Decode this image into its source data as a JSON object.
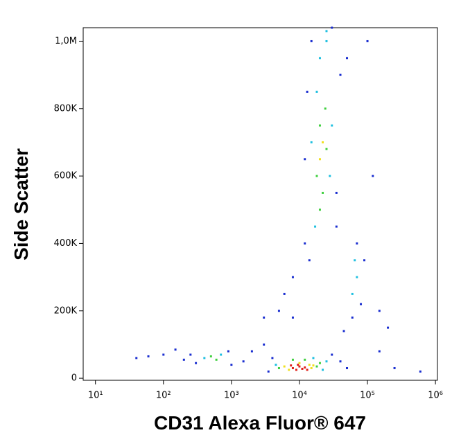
{
  "chart_data": {
    "type": "scatter",
    "x_label": "CD31 Alexa Fluor® 647",
    "y_label": "Side Scatter",
    "xscale": "log",
    "xlim": [
      6.6,
      1070000
    ],
    "ylim": [
      -6000,
      1040000
    ],
    "xticks": [
      {
        "value": 10,
        "label": "10¹"
      },
      {
        "value": 100,
        "label": "10²"
      },
      {
        "value": 1000,
        "label": "10³"
      },
      {
        "value": 10000,
        "label": "10⁴"
      },
      {
        "value": 100000,
        "label": "10⁵"
      },
      {
        "value": 1000000,
        "label": "10⁶"
      }
    ],
    "yticks": [
      0,
      {
        "value": 200000,
        "label": "200K"
      },
      {
        "value": 400000,
        "label": "400K"
      },
      {
        "value": 600000,
        "label": "600K"
      },
      {
        "value": 800000,
        "label": "800K"
      },
      {
        "value": 1000000,
        "label": "1,0M"
      }
    ],
    "series": [
      {
        "color": "#1a2ed0",
        "x": [
          3500,
          4000,
          30000,
          40000,
          50000,
          2000,
          1500,
          3000,
          300,
          250,
          200,
          900,
          1000,
          100,
          60,
          40,
          150,
          12000,
          14000,
          35000,
          40000,
          13000,
          12000,
          35000,
          15000,
          50000,
          70000,
          80000,
          90000,
          60000,
          150000,
          200000,
          150000,
          6000,
          5000,
          3000,
          8000,
          120000,
          100000,
          250000,
          600000,
          30000,
          45000,
          8000
        ],
        "values": [
          20000,
          60000,
          70000,
          50000,
          30000,
          80000,
          50000,
          100000,
          45000,
          70000,
          55000,
          80000,
          40000,
          70000,
          65000,
          60000,
          85000,
          400000,
          350000,
          450000,
          900000,
          850000,
          650000,
          550000,
          1000000,
          950000,
          400000,
          220000,
          350000,
          180000,
          200000,
          150000,
          80000,
          250000,
          200000,
          180000,
          300000,
          600000,
          1000000,
          30000,
          20000,
          1040000,
          140000,
          180000
        ]
      },
      {
        "color": "#20c0e0",
        "x": [
          4500,
          25000,
          22000,
          16000,
          20000,
          25000,
          18000,
          28000,
          17000,
          30000,
          15000,
          400,
          700,
          70000,
          60000,
          65000,
          25000
        ],
        "values": [
          40000,
          50000,
          25000,
          60000,
          950000,
          1000000,
          850000,
          600000,
          450000,
          750000,
          700000,
          60000,
          70000,
          300000,
          250000,
          350000,
          1030000
        ]
      },
      {
        "color": "#40d040",
        "x": [
          5000,
          18000,
          20000,
          8000,
          12000,
          18000,
          20000,
          25000,
          22000,
          24000,
          20000,
          600,
          500
        ],
        "values": [
          30000,
          35000,
          45000,
          55000,
          55000,
          600000,
          750000,
          680000,
          550000,
          800000,
          500000,
          55000,
          65000
        ]
      },
      {
        "color": "#f0e020",
        "x": [
          6000,
          14000,
          15000,
          10000,
          7000,
          16000,
          20000,
          22000
        ],
        "values": [
          35000,
          40000,
          30000,
          45000,
          25000,
          38000,
          650000,
          700000
        ]
      },
      {
        "color": "#e0201a",
        "x": [
          8000,
          9000,
          10000,
          11000,
          12000,
          9500,
          13000,
          7500
        ],
        "values": [
          30000,
          25000,
          35000,
          28000,
          32000,
          40000,
          25000,
          38000
        ]
      }
    ]
  }
}
